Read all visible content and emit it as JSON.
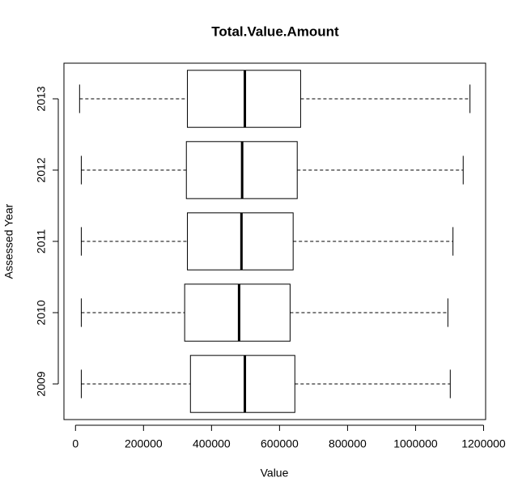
{
  "chart_data": {
    "type": "box",
    "title": "Total.Value.Amount",
    "x_label": "Value",
    "y_label": "Assessed Year",
    "categories": [
      "2009",
      "2010",
      "2011",
      "2012",
      "2013"
    ],
    "min": [
      17000,
      17000,
      17000,
      17000,
      12000
    ],
    "q1": [
      338000,
      321000,
      329000,
      326000,
      329000
    ],
    "median": [
      498000,
      481000,
      488000,
      490000,
      498000
    ],
    "q3": [
      645000,
      631000,
      640000,
      652000,
      662000
    ],
    "max": [
      1102000,
      1095000,
      1110000,
      1140000,
      1160000
    ],
    "color": "#000000",
    "xlim": [
      -34000,
      1206000
    ],
    "xticks": [
      0,
      200000,
      400000,
      600000,
      800000,
      1000000,
      1200000
    ]
  }
}
